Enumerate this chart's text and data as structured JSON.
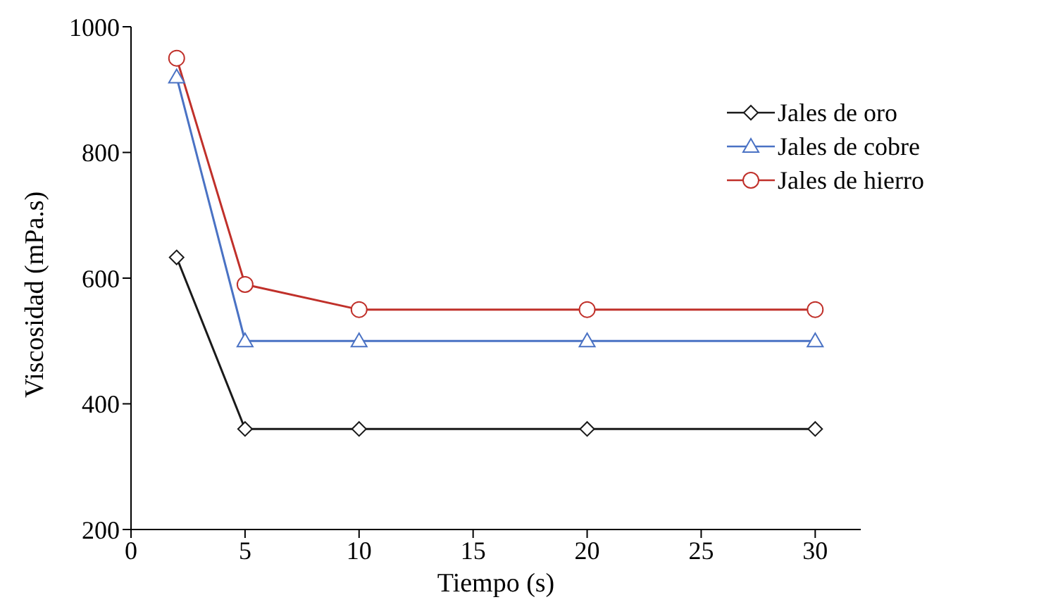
{
  "chart_data": {
    "type": "line",
    "xlabel": "Tiempo (s)",
    "ylabel": "Viscosidad (mPa.s)",
    "x": [
      2,
      5,
      10,
      20,
      30
    ],
    "series": [
      {
        "name": "Jales de oro",
        "color": "#1a1a1a",
        "marker": "diamond",
        "values": [
          633,
          360,
          360,
          360,
          360
        ]
      },
      {
        "name": "Jales de cobre",
        "color": "#4a72c4",
        "marker": "triangle",
        "values": [
          920,
          500,
          500,
          500,
          500
        ]
      },
      {
        "name": "Jales de hierro",
        "color": "#c0302a",
        "marker": "circle",
        "values": [
          950,
          590,
          550,
          550,
          550
        ]
      }
    ],
    "xlim": [
      0,
      32
    ],
    "xticks": [
      0,
      5,
      10,
      15,
      20,
      25,
      30
    ],
    "ylim": [
      200,
      1000
    ],
    "yticks": [
      200,
      400,
      600,
      800,
      1000
    ],
    "grid": false,
    "legend": "top right"
  }
}
